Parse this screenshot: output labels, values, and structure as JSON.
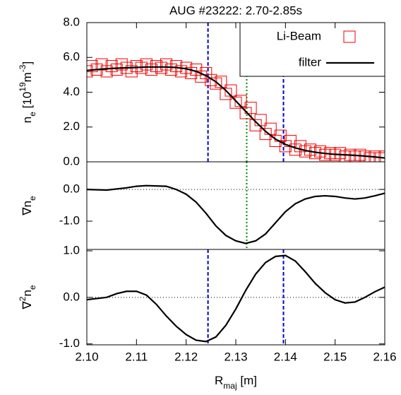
{
  "chart_data": [
    {
      "type": "line",
      "title": "AUG #23222: 2.70-2.85s",
      "ylabel_parts": [
        {
          "t": "n"
        },
        {
          "t": "e",
          "sub": true
        },
        {
          "t": " [10"
        },
        {
          "t": "19",
          "sup": true
        },
        {
          "t": "m"
        },
        {
          "t": "-3",
          "sup": true
        },
        {
          "t": "]"
        }
      ],
      "xlim": [
        2.1,
        2.16
      ],
      "ylim": [
        0,
        8
      ],
      "yticks": [
        {
          "value": 0,
          "label": "0.0"
        },
        {
          "value": 2,
          "label": "2.0"
        },
        {
          "value": 4,
          "label": "4.0"
        },
        {
          "value": 6,
          "label": "6.0"
        },
        {
          "value": 8,
          "label": "8.0"
        }
      ],
      "vlines": [
        {
          "x": 2.1244,
          "color": "#0000cc",
          "style": "dashed"
        },
        {
          "x": 2.1396,
          "color": "#0000cc",
          "style": "dashed"
        },
        {
          "x": 2.1322,
          "color": "#008800",
          "style": "dotted"
        }
      ],
      "legend": "upper right",
      "series": [
        {
          "name": "Li-Beam",
          "color": "#ee0000",
          "marker": "square",
          "x": [
            2.1,
            2.101,
            2.102,
            2.103,
            2.104,
            2.105,
            2.106,
            2.107,
            2.108,
            2.109,
            2.11,
            2.111,
            2.112,
            2.113,
            2.114,
            2.115,
            2.116,
            2.117,
            2.118,
            2.119,
            2.12,
            2.121,
            2.122,
            2.123,
            2.124,
            2.125,
            2.126,
            2.127,
            2.128,
            2.129,
            2.13,
            2.131,
            2.132,
            2.133,
            2.134,
            2.135,
            2.136,
            2.137,
            2.138,
            2.139,
            2.14,
            2.141,
            2.142,
            2.143,
            2.144,
            2.145,
            2.146,
            2.147,
            2.148,
            2.149,
            2.15,
            2.151,
            2.152,
            2.153,
            2.154,
            2.155,
            2.156,
            2.157,
            2.158,
            2.159,
            2.16
          ],
          "values": [
            5.2,
            5.5,
            5.3,
            5.6,
            5.2,
            5.5,
            5.3,
            5.6,
            5.4,
            5.2,
            5.5,
            5.4,
            5.6,
            5.3,
            5.5,
            5.4,
            5.6,
            5.3,
            5.5,
            5.2,
            5.4,
            5.1,
            5.3,
            4.9,
            5.1,
            4.7,
            4.5,
            4.6,
            3.9,
            4.1,
            3.4,
            3.5,
            2.8,
            3.1,
            2.1,
            2.4,
            1.6,
            1.9,
            1.2,
            1.5,
            0.9,
            1.2,
            0.7,
            0.9,
            0.6,
            0.7,
            0.5,
            0.6,
            0.4,
            0.5,
            0.4,
            0.5,
            0.3,
            0.4,
            0.3,
            0.4,
            0.3,
            0.2,
            0.3,
            0.2,
            0.3
          ]
        },
        {
          "name": "filter",
          "color": "#000000",
          "marker": "none",
          "x": [
            2.1,
            2.102,
            2.104,
            2.106,
            2.108,
            2.11,
            2.112,
            2.114,
            2.116,
            2.118,
            2.12,
            2.122,
            2.124,
            2.126,
            2.128,
            2.13,
            2.132,
            2.134,
            2.136,
            2.138,
            2.14,
            2.142,
            2.144,
            2.146,
            2.148,
            2.15,
            2.152,
            2.154,
            2.156,
            2.158,
            2.16
          ],
          "values": [
            5.25,
            5.3,
            5.35,
            5.38,
            5.4,
            5.42,
            5.45,
            5.45,
            5.45,
            5.42,
            5.35,
            5.2,
            4.95,
            4.6,
            4.1,
            3.5,
            2.9,
            2.3,
            1.75,
            1.3,
            1.0,
            0.8,
            0.65,
            0.55,
            0.48,
            0.43,
            0.4,
            0.37,
            0.33,
            0.28,
            0.22
          ]
        }
      ]
    },
    {
      "type": "line",
      "ylabel_parts": [
        {
          "t": "∇n"
        },
        {
          "t": "e",
          "sub": true
        }
      ],
      "xlim": [
        2.1,
        2.16
      ],
      "ylim": [
        -1.89,
        0.87
      ],
      "yticks": [
        {
          "value": 0,
          "label": "0.0"
        },
        {
          "value": -1,
          "label": "-1.0"
        }
      ],
      "zero_line": true,
      "vlines": [
        {
          "x": 2.1322,
          "color": "#008800",
          "style": "dotted"
        }
      ],
      "series": [
        {
          "color": "#000000",
          "marker": "none",
          "x": [
            2.1,
            2.104,
            2.108,
            2.11,
            2.112,
            2.116,
            2.118,
            2.12,
            2.122,
            2.124,
            2.126,
            2.128,
            2.13,
            2.132,
            2.134,
            2.136,
            2.138,
            2.14,
            2.142,
            2.144,
            2.146,
            2.148,
            2.15,
            2.152,
            2.154,
            2.156,
            2.158,
            2.16
          ],
          "values": [
            0,
            -0.02,
            0.05,
            0.1,
            0.12,
            0.1,
            0,
            -0.15,
            -0.4,
            -0.75,
            -1.15,
            -1.45,
            -1.62,
            -1.7,
            -1.62,
            -1.4,
            -1.05,
            -0.7,
            -0.45,
            -0.3,
            -0.22,
            -0.2,
            -0.22,
            -0.27,
            -0.3,
            -0.27,
            -0.2,
            -0.12
          ]
        }
      ]
    },
    {
      "type": "line",
      "ylabel_parts": [
        {
          "t": "∇"
        },
        {
          "t": "2",
          "sup": true
        },
        {
          "t": "n"
        },
        {
          "t": "e",
          "sub": true
        }
      ],
      "xlabel_parts": [
        {
          "t": "R"
        },
        {
          "t": "maj",
          "sub": true
        },
        {
          "t": " [m]"
        }
      ],
      "xlim": [
        2.1,
        2.16
      ],
      "ylim": [
        -1.02,
        1.03
      ],
      "xticks": [
        {
          "value": 2.1,
          "label": "2.10"
        },
        {
          "value": 2.11,
          "label": "2.11"
        },
        {
          "value": 2.12,
          "label": "2.12"
        },
        {
          "value": 2.13,
          "label": "2.13"
        },
        {
          "value": 2.14,
          "label": "2.14"
        },
        {
          "value": 2.15,
          "label": "2.15"
        },
        {
          "value": 2.16,
          "label": "2.16"
        }
      ],
      "yticks": [
        {
          "value": 1,
          "label": "1.0"
        },
        {
          "value": 0,
          "label": "0.0"
        },
        {
          "value": -1,
          "label": "-1.0"
        }
      ],
      "zero_line": true,
      "vlines": [
        {
          "x": 2.1244,
          "color": "#0000cc",
          "style": "dashed"
        },
        {
          "x": 2.1396,
          "color": "#0000cc",
          "style": "dashed"
        }
      ],
      "series": [
        {
          "color": "#000000",
          "marker": "none",
          "x": [
            2.1,
            2.104,
            2.106,
            2.108,
            2.11,
            2.112,
            2.114,
            2.116,
            2.118,
            2.12,
            2.122,
            2.124,
            2.126,
            2.128,
            2.13,
            2.132,
            2.134,
            2.136,
            2.138,
            2.14,
            2.142,
            2.144,
            2.146,
            2.148,
            2.15,
            2.152,
            2.154,
            2.156,
            2.158,
            2.16
          ],
          "values": [
            -0.05,
            0,
            0.08,
            0.13,
            0.13,
            0.05,
            -0.15,
            -0.4,
            -0.62,
            -0.8,
            -0.92,
            -0.95,
            -0.85,
            -0.6,
            -0.25,
            0.15,
            0.5,
            0.75,
            0.88,
            0.9,
            0.78,
            0.55,
            0.3,
            0.1,
            -0.05,
            -0.12,
            -0.1,
            0,
            0.12,
            0.22
          ]
        }
      ]
    }
  ]
}
